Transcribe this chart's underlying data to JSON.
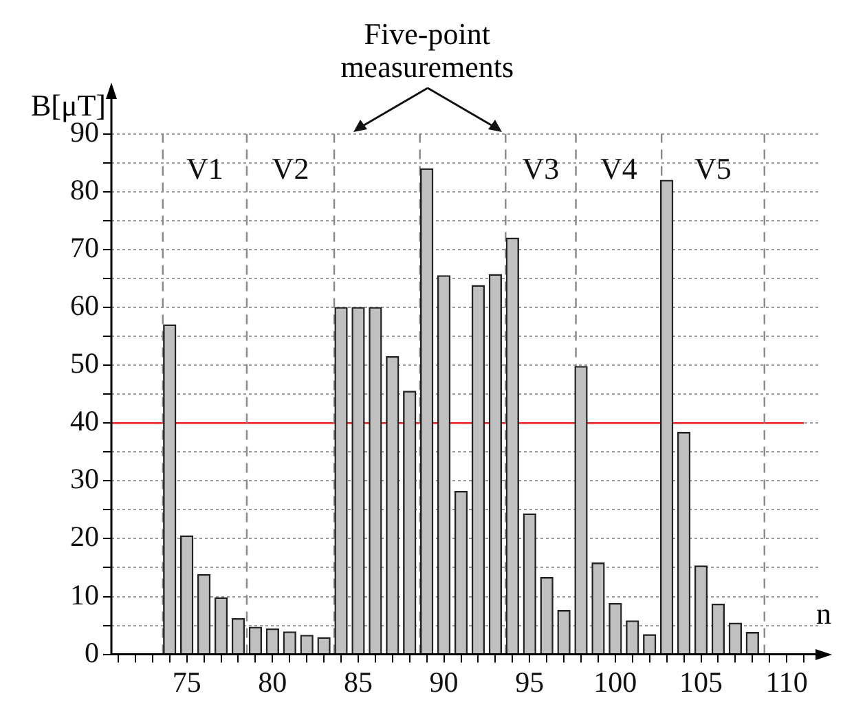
{
  "chart_data": {
    "type": "bar",
    "xlabel": "n",
    "ylabel": "B[μT]",
    "color": "#c0c0c0",
    "x": [
      74,
      75,
      76,
      77,
      78,
      79,
      80,
      81,
      82,
      83,
      84,
      85,
      86,
      87,
      88,
      89,
      90,
      91,
      92,
      93,
      94,
      95,
      96,
      97,
      98,
      99,
      100,
      101,
      102,
      103,
      104,
      105,
      106,
      107,
      108
    ],
    "values": [
      57,
      20.5,
      13.8,
      9.8,
      6.2,
      4.7,
      4.4,
      3.9,
      3.3,
      2.9,
      60,
      60,
      60,
      51.5,
      45.5,
      84,
      65.5,
      28.2,
      63.8,
      65.7,
      72,
      24.3,
      13.3,
      7.6,
      49.8,
      15.8,
      8.8,
      5.8,
      3.4,
      82,
      38.4,
      15.3,
      8.7,
      5.4,
      3.8
    ],
    "xlim": [
      70.6,
      112
    ],
    "xticks": [
      {
        "value": 71,
        "label": null
      },
      {
        "value": 72,
        "label": null
      },
      {
        "value": 73,
        "label": null
      },
      {
        "value": 74,
        "label": null
      },
      75,
      {
        "value": 76,
        "label": null
      },
      {
        "value": 77,
        "label": null
      },
      {
        "value": 78,
        "label": null
      },
      {
        "value": 79,
        "label": null
      },
      80,
      {
        "value": 81,
        "label": null
      },
      {
        "value": 82,
        "label": null
      },
      {
        "value": 83,
        "label": null
      },
      {
        "value": 84,
        "label": null
      },
      85,
      {
        "value": 86,
        "label": null
      },
      {
        "value": 87,
        "label": null
      },
      {
        "value": 88,
        "label": null
      },
      {
        "value": 89,
        "label": null
      },
      90,
      {
        "value": 91,
        "label": null
      },
      {
        "value": 92,
        "label": null
      },
      {
        "value": 93,
        "label": null
      },
      {
        "value": 94,
        "label": null
      },
      95,
      {
        "value": 96,
        "label": null
      },
      {
        "value": 97,
        "label": null
      },
      {
        "value": 98,
        "label": null
      },
      {
        "value": 99,
        "label": null
      },
      100,
      {
        "value": 101,
        "label": null
      },
      {
        "value": 102,
        "label": null
      },
      {
        "value": 103,
        "label": null
      },
      {
        "value": 104,
        "label": null
      },
      105,
      {
        "value": 106,
        "label": null
      },
      {
        "value": 107,
        "label": null
      },
      {
        "value": 108,
        "label": null
      },
      {
        "value": 109,
        "label": null
      },
      110,
      {
        "value": 111,
        "label": null
      }
    ],
    "ylim": [
      0,
      97
    ],
    "yticks": [
      0,
      {
        "value": 5,
        "label": null
      },
      10,
      {
        "value": 15,
        "label": null
      },
      20,
      {
        "value": 25,
        "label": null
      },
      30,
      {
        "value": 35,
        "label": null
      },
      40,
      {
        "value": 45,
        "label": null
      },
      50,
      {
        "value": 55,
        "label": null
      },
      60,
      {
        "value": 65,
        "label": null
      },
      70,
      {
        "value": 75,
        "label": null
      },
      80,
      {
        "value": 85,
        "label": null
      },
      90
    ],
    "grid": "y",
    "ref_lines": [
      {
        "axis": "y",
        "value": 40,
        "color": "#e82020",
        "line_style": "solid"
      },
      {
        "axis": "x",
        "value": 73.6,
        "color": "#888888",
        "line_style": "dashed"
      },
      {
        "axis": "x",
        "value": 78.5,
        "color": "#888888",
        "line_style": "dashed"
      },
      {
        "axis": "x",
        "value": 83.6,
        "color": "#888888",
        "line_style": "dashed"
      },
      {
        "axis": "x",
        "value": 88.6,
        "color": "#888888",
        "line_style": "dashed"
      },
      {
        "axis": "x",
        "value": 93.6,
        "color": "#888888",
        "line_style": "dashed"
      },
      {
        "axis": "x",
        "value": 97.7,
        "color": "#888888",
        "line_style": "dashed"
      },
      {
        "axis": "x",
        "value": 102.7,
        "color": "#888888",
        "line_style": "dashed"
      },
      {
        "axis": "x",
        "value": 108.7,
        "color": "#888888",
        "line_style": "dashed"
      }
    ],
    "annotations": [
      "Five-point measurements",
      "V1",
      "V2",
      "V3",
      "V4",
      "V5"
    ]
  }
}
